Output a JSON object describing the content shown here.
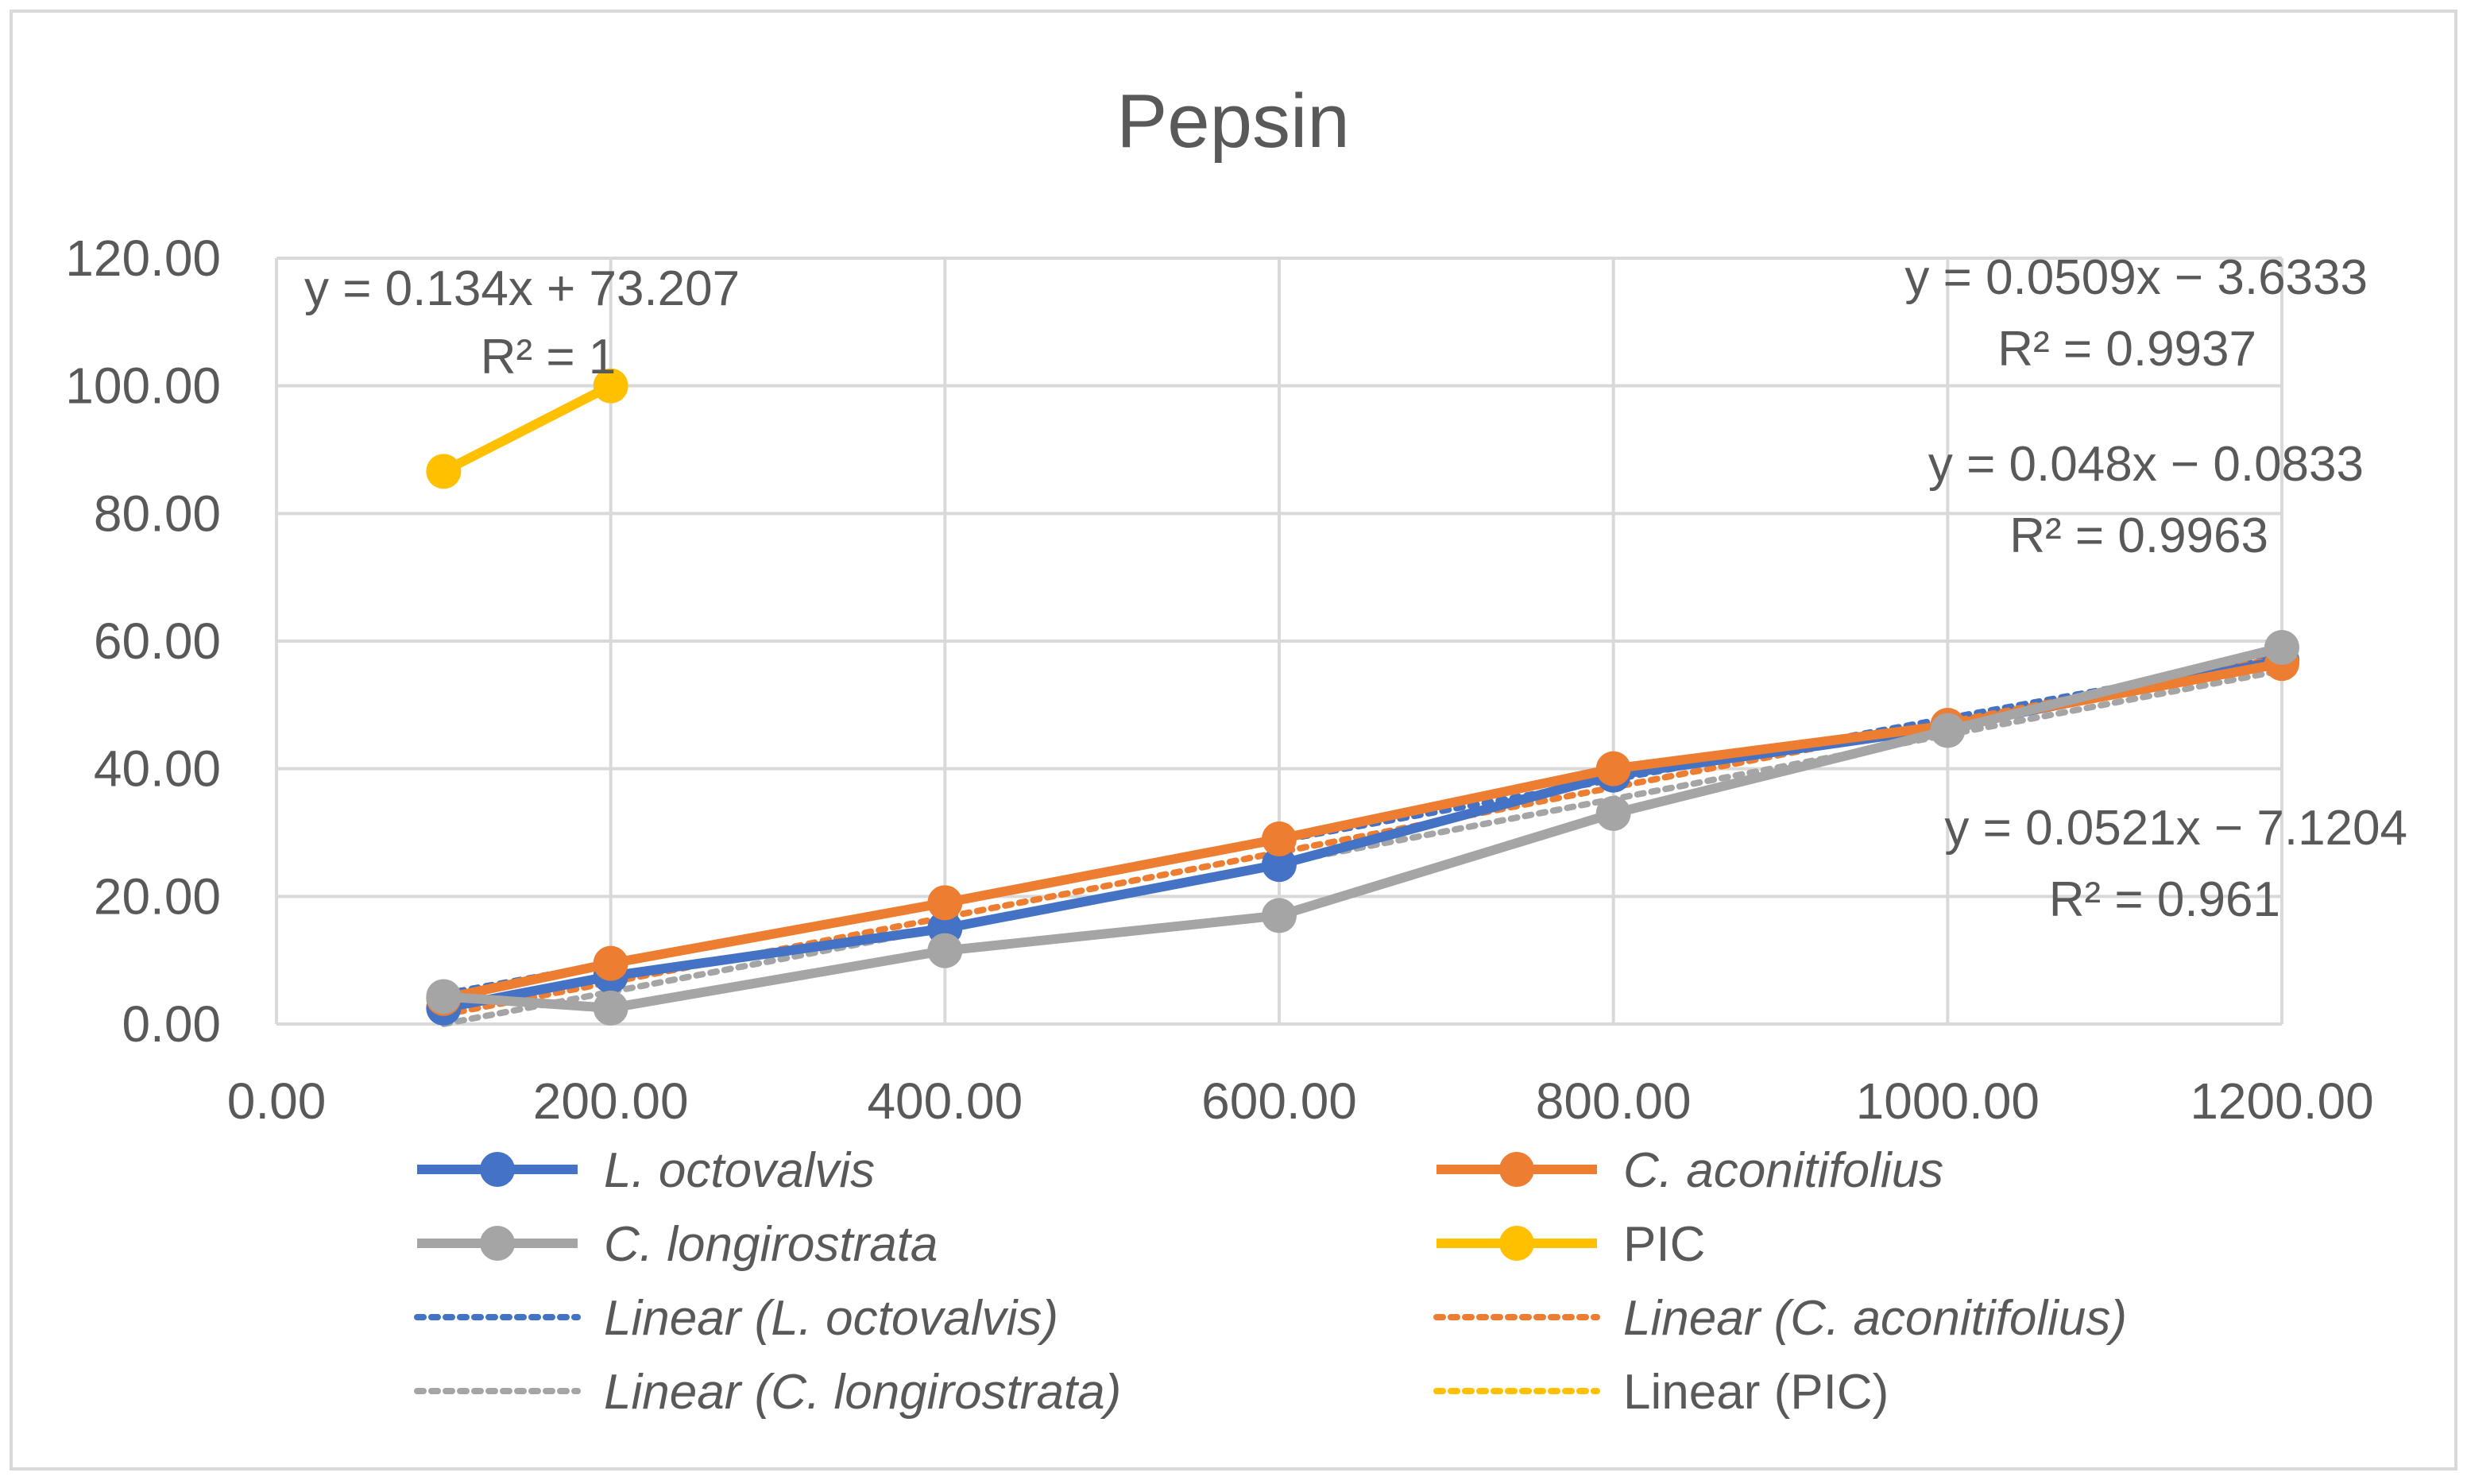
{
  "chart_data": {
    "type": "line",
    "title": "Pepsin",
    "xlabel": "",
    "ylabel": "",
    "xlim": [
      0,
      1200
    ],
    "ylim": [
      0,
      120
    ],
    "x_ticks": [
      "0.00",
      "200.00",
      "400.00",
      "600.00",
      "800.00",
      "1000.00",
      "1200.00"
    ],
    "y_ticks": [
      "0.00",
      "20.00",
      "40.00",
      "60.00",
      "80.00",
      "100.00",
      "120.00"
    ],
    "grid": true,
    "legend_position": "bottom",
    "series": [
      {
        "name": "L. octovalvis",
        "color": "#4472C4",
        "italic": true,
        "x": [
          100,
          200,
          400,
          600,
          800,
          1000,
          1200
        ],
        "y": [
          2.5,
          7.5,
          15,
          25,
          39,
          46.5,
          57
        ]
      },
      {
        "name": "C. aconitifolius",
        "color": "#ED7D31",
        "italic": true,
        "x": [
          100,
          200,
          400,
          600,
          800,
          1000,
          1200
        ],
        "y": [
          4,
          9.5,
          19,
          29,
          40,
          46.8,
          56.5
        ]
      },
      {
        "name": "C. longirostrata",
        "color": "#A5A5A5",
        "italic": true,
        "x": [
          100,
          200,
          400,
          600,
          800,
          1000,
          1200
        ],
        "y": [
          4.3,
          2.5,
          11.5,
          17,
          33,
          46,
          59
        ]
      },
      {
        "name": "PIC",
        "color": "#FFC000",
        "italic": false,
        "x": [
          100,
          200
        ],
        "y": [
          86.6,
          100
        ]
      }
    ],
    "trendlines": [
      {
        "name": "Linear (L. octovalvis)",
        "color": "#4472C4",
        "italic": true,
        "slope": 0.048,
        "intercept": -0.0833,
        "x_range": [
          100,
          1200
        ]
      },
      {
        "name": "Linear (C. aconitifolius)",
        "color": "#ED7D31",
        "italic": true,
        "slope": 0.0509,
        "intercept": -3.6333,
        "x_range": [
          100,
          1200
        ]
      },
      {
        "name": "Linear (C. longirostrata)",
        "color": "#A5A5A5",
        "italic": true,
        "slope": 0.0521,
        "intercept": -7.1204,
        "x_range": [
          100,
          1200
        ]
      },
      {
        "name": "Linear (PIC)",
        "color": "#FFC000",
        "italic": false,
        "slope": 0.134,
        "intercept": 73.207,
        "x_range": [
          100,
          200
        ]
      }
    ],
    "annotations": [
      {
        "eq": "y = 0.134x + 73.207",
        "r2": "R² = 1"
      },
      {
        "eq": "y = 0.0509x − 3.6333",
        "r2": "R² = 0.9937"
      },
      {
        "eq": "y = 0.048x − 0.0833",
        "r2": "R² = 0.9963"
      },
      {
        "eq": "y = 0.0521x − 7.1204",
        "r2": "R² = 0.961"
      }
    ]
  }
}
